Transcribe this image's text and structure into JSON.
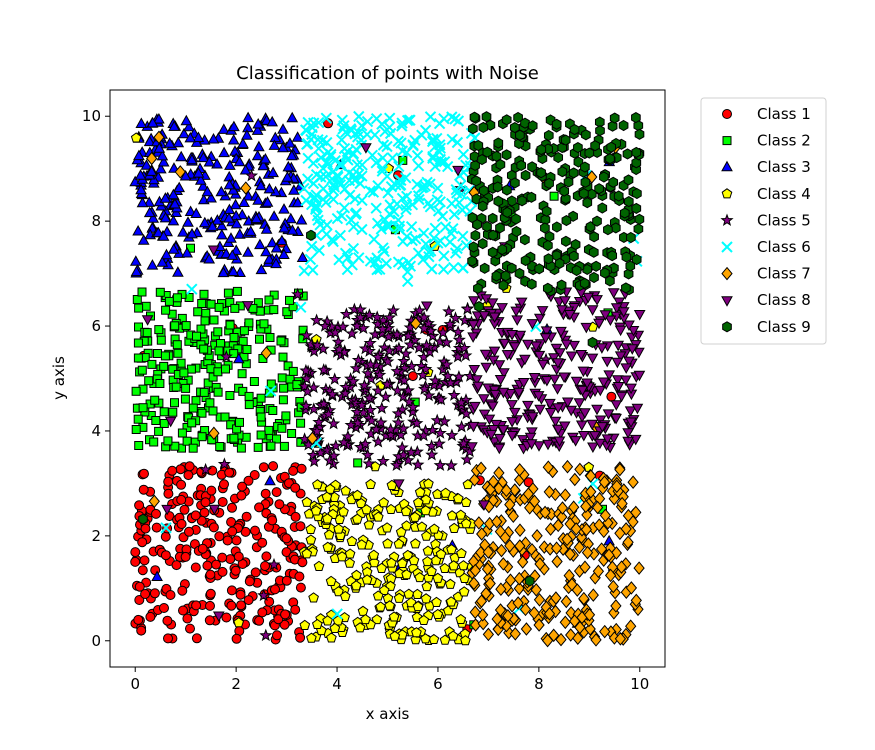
{
  "chart_data": {
    "type": "scatter",
    "title": "Classification of points with Noise",
    "xlabel": "x axis",
    "ylabel": "y axis",
    "xlim": [
      -0.5,
      10.5
    ],
    "ylim": [
      -0.5,
      10.5
    ],
    "xticks": [
      "0",
      "2",
      "4",
      "6",
      "8",
      "10"
    ],
    "yticks": [
      "0",
      "2",
      "4",
      "6",
      "8",
      "10"
    ],
    "grid": false,
    "legend_position": "outside-right-top",
    "points_per_class": 300,
    "noise_fraction": 0.05,
    "series": [
      {
        "name": "Class 1",
        "marker": "circle",
        "color": "#ff0000",
        "x_range": [
          0,
          3.33
        ],
        "y_range": [
          0,
          3.33
        ]
      },
      {
        "name": "Class 2",
        "marker": "square",
        "color": "#00ff00",
        "x_range": [
          0,
          3.33
        ],
        "y_range": [
          3.67,
          6.67
        ]
      },
      {
        "name": "Class 3",
        "marker": "triangle",
        "color": "#0000ff",
        "x_range": [
          0,
          3.33
        ],
        "y_range": [
          7,
          10
        ]
      },
      {
        "name": "Class 4",
        "marker": "pentagon",
        "color": "#ffff00",
        "x_range": [
          3.33,
          6.67
        ],
        "y_range": [
          0,
          3
        ]
      },
      {
        "name": "Class 5",
        "marker": "star",
        "color": "#800080",
        "x_range": [
          3.33,
          6.67
        ],
        "y_range": [
          3.33,
          6.33
        ]
      },
      {
        "name": "Class 6",
        "marker": "x",
        "color": "#00ffff",
        "x_range": [
          3.33,
          6.67
        ],
        "y_range": [
          7,
          10
        ]
      },
      {
        "name": "Class 7",
        "marker": "diamond",
        "color": "#ffa500",
        "x_range": [
          6.67,
          10
        ],
        "y_range": [
          0,
          3.33
        ]
      },
      {
        "name": "Class 8",
        "marker": "triangle-down",
        "color": "#800080",
        "x_range": [
          6.67,
          10
        ],
        "y_range": [
          3.67,
          6.67
        ]
      },
      {
        "name": "Class 9",
        "marker": "hexagon",
        "color": "#006400",
        "x_range": [
          6.67,
          10
        ],
        "y_range": [
          6.67,
          10
        ]
      }
    ]
  }
}
